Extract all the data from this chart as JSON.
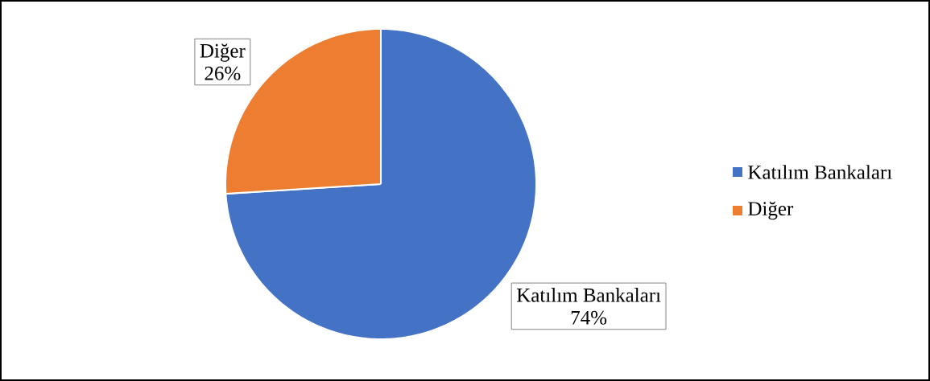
{
  "chart_data": {
    "type": "pie",
    "categories": [
      "Katılım Bankaları",
      "Diğer"
    ],
    "values": [
      74,
      26
    ],
    "colors": [
      "#4472c4",
      "#ed7d31"
    ],
    "value_labels": [
      "74%",
      "26%"
    ],
    "legend": "right"
  }
}
